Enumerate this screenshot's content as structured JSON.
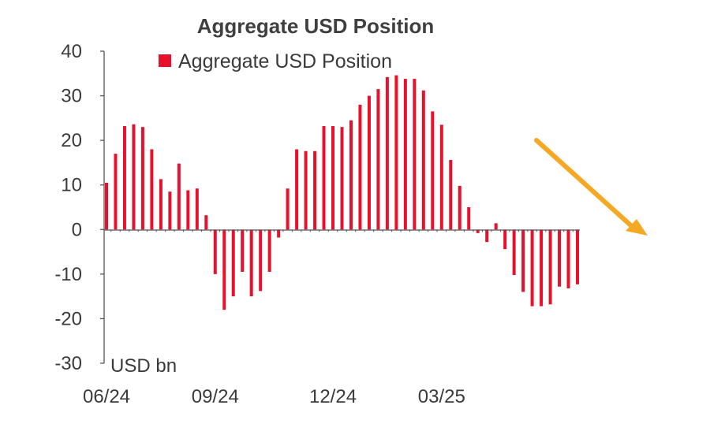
{
  "chart_data": {
    "type": "bar",
    "title": "Aggregate USD Position",
    "legend": {
      "label": "Aggregate USD Position",
      "placement": "top"
    },
    "unit_label": "USD bn",
    "ylim": [
      -30,
      40
    ],
    "y_ticks": [
      "40",
      "30",
      "20",
      "10",
      "0",
      "-10",
      "-20",
      "-30"
    ],
    "x_tick_labels": [
      "06/24",
      "09/24",
      "12/24",
      "03/25"
    ],
    "x_tick_label_bar_index": [
      0,
      12,
      25,
      37
    ],
    "grid": false,
    "series": [
      {
        "name": "Aggregate USD Position",
        "color": "#e8112d",
        "values": [
          10.5,
          17,
          23.2,
          23.6,
          23,
          18,
          11.3,
          8.5,
          14.8,
          8.8,
          9.2,
          3.2,
          -10,
          -18,
          -15,
          -9.5,
          -15,
          -13.8,
          -9.5,
          -1.8,
          9.2,
          18,
          17.6,
          17.6,
          23.2,
          23.2,
          23,
          24.5,
          28,
          30,
          31.5,
          34.2,
          34.6,
          33.8,
          33.8,
          31.2,
          26.5,
          23.5,
          15.6,
          9.8,
          5,
          -0.8,
          -2.8,
          1.4,
          -4.4,
          -10.2,
          -14,
          -17.2,
          -17.2,
          -16.8,
          -12.8,
          -13.2,
          -12.3
        ]
      }
    ]
  },
  "annotation": {
    "arrow_color": "#f5a823",
    "arrow_direction": "down-right"
  }
}
